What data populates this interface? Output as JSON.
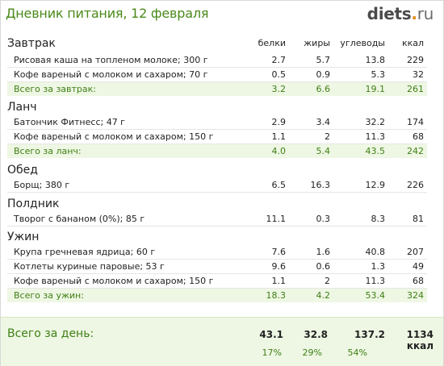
{
  "header": {
    "title": "Дневник питания, 12 февраля",
    "logo_main": "diets",
    "logo_dot": ".",
    "logo_tld": "ru"
  },
  "columns": {
    "protein": "белки",
    "fat": "жиры",
    "carbs": "углеводы",
    "kcal": "ккал"
  },
  "meals": [
    {
      "name": "Завтрак",
      "items": [
        {
          "name": "Рисовая каша на топленом молоке; 300 г",
          "p": "2.7",
          "f": "5.7",
          "c": "13.8",
          "k": "229"
        },
        {
          "name": "Кофе вареный с молоком и сахаром; 70 г",
          "p": "0.5",
          "f": "0.9",
          "c": "5.3",
          "k": "32"
        }
      ],
      "total": {
        "label": "Всего за завтрак:",
        "p": "3.2",
        "f": "6.6",
        "c": "19.1",
        "k": "261"
      }
    },
    {
      "name": "Ланч",
      "items": [
        {
          "name": "Батончик Фитнесс; 47 г",
          "p": "2.9",
          "f": "3.4",
          "c": "32.2",
          "k": "174"
        },
        {
          "name": "Кофе вареный с молоком и сахаром; 150 г",
          "p": "1.1",
          "f": "2",
          "c": "11.3",
          "k": "68"
        }
      ],
      "total": {
        "label": "Всего за ланч:",
        "p": "4.0",
        "f": "5.4",
        "c": "43.5",
        "k": "242"
      }
    },
    {
      "name": "Обед",
      "items": [
        {
          "name": "Борщ; 380 г",
          "p": "6.5",
          "f": "16.3",
          "c": "12.9",
          "k": "226"
        }
      ]
    },
    {
      "name": "Полдник",
      "items": [
        {
          "name": "Творог с бананом (0%); 85 г",
          "p": "11.1",
          "f": "0.3",
          "c": "8.3",
          "k": "81"
        }
      ]
    },
    {
      "name": "Ужин",
      "items": [
        {
          "name": "Крупа гречневая ядрица; 60 г",
          "p": "7.6",
          "f": "1.6",
          "c": "40.8",
          "k": "207"
        },
        {
          "name": "Котлеты куриные паровые; 53 г",
          "p": "9.6",
          "f": "0.6",
          "c": "1.3",
          "k": "49"
        },
        {
          "name": "Кофе вареный с молоком и сахаром; 150 г",
          "p": "1.1",
          "f": "2",
          "c": "11.3",
          "k": "68"
        }
      ],
      "total": {
        "label": "Всего за ужин:",
        "p": "18.3",
        "f": "4.2",
        "c": "53.4",
        "k": "324"
      }
    }
  ],
  "day_total": {
    "label": "Всего за день:",
    "p": "43.1",
    "f": "32.8",
    "c": "137.2",
    "k": "1134 ккал",
    "p_pct": "17%",
    "f_pct": "29%",
    "c_pct": "54%"
  }
}
